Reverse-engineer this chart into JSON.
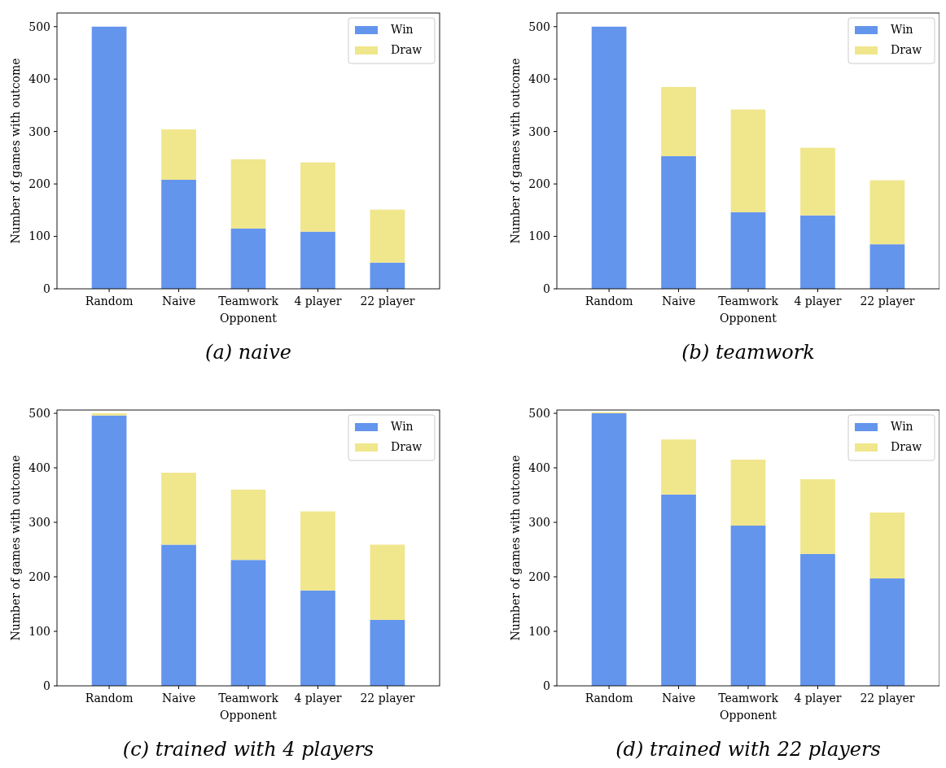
{
  "chart_data": [
    {
      "type": "bar",
      "title": "(a) naive",
      "xlabel": "Opponent",
      "ylabel": "Number of games with outcome",
      "categories": [
        "Random",
        "Naive",
        "Teamwork",
        "4 player",
        "22 player"
      ],
      "stacked": true,
      "legend": "top right",
      "ylim": [
        0,
        526
      ],
      "yticks": [
        0,
        100,
        200,
        300,
        400,
        500
      ],
      "series": [
        {
          "name": "Win",
          "color": "#6495ed",
          "values": [
            500,
            208,
            115,
            109,
            50
          ]
        },
        {
          "name": "Draw",
          "color": "#f0e68c",
          "values": [
            0,
            96,
            132,
            132,
            101
          ]
        }
      ]
    },
    {
      "type": "bar",
      "title": "(b) teamwork",
      "xlabel": "Opponent",
      "ylabel": "Number of games with outcome",
      "categories": [
        "Random",
        "Naive",
        "Teamwork",
        "4 player",
        "22 player"
      ],
      "stacked": true,
      "legend": "top right",
      "ylim": [
        0,
        526
      ],
      "yticks": [
        0,
        100,
        200,
        300,
        400,
        500
      ],
      "series": [
        {
          "name": "Win",
          "color": "#6495ed",
          "values": [
            500,
            253,
            146,
            140,
            85
          ]
        },
        {
          "name": "Draw",
          "color": "#f0e68c",
          "values": [
            0,
            132,
            196,
            129,
            122
          ]
        }
      ]
    },
    {
      "type": "bar",
      "title": "(c) trained with 4 players",
      "xlabel": "Opponent",
      "ylabel": "Number of games with outcome",
      "categories": [
        "Random",
        "Naive",
        "Teamwork",
        "4 player",
        "22 player"
      ],
      "stacked": true,
      "legend": "top right",
      "ylim": [
        0,
        506
      ],
      "yticks": [
        0,
        100,
        200,
        300,
        400,
        500
      ],
      "series": [
        {
          "name": "Win",
          "color": "#6495ed",
          "values": [
            496,
            259,
            231,
            175,
            121
          ]
        },
        {
          "name": "Draw",
          "color": "#f0e68c",
          "values": [
            4,
            132,
            129,
            145,
            138
          ]
        }
      ]
    },
    {
      "type": "bar",
      "title": "(d) trained with 22 players",
      "xlabel": "Opponent",
      "ylabel": "Number of games with outcome",
      "categories": [
        "Random",
        "Naive",
        "Teamwork",
        "4 player",
        "22 player"
      ],
      "stacked": true,
      "legend": "top right",
      "ylim": [
        0,
        506
      ],
      "yticks": [
        0,
        100,
        200,
        300,
        400,
        500
      ],
      "series": [
        {
          "name": "Win",
          "color": "#6495ed",
          "values": [
            500,
            351,
            294,
            242,
            197
          ]
        },
        {
          "name": "Draw",
          "color": "#f0e68c",
          "values": [
            2,
            101,
            121,
            137,
            121
          ]
        }
      ]
    }
  ]
}
